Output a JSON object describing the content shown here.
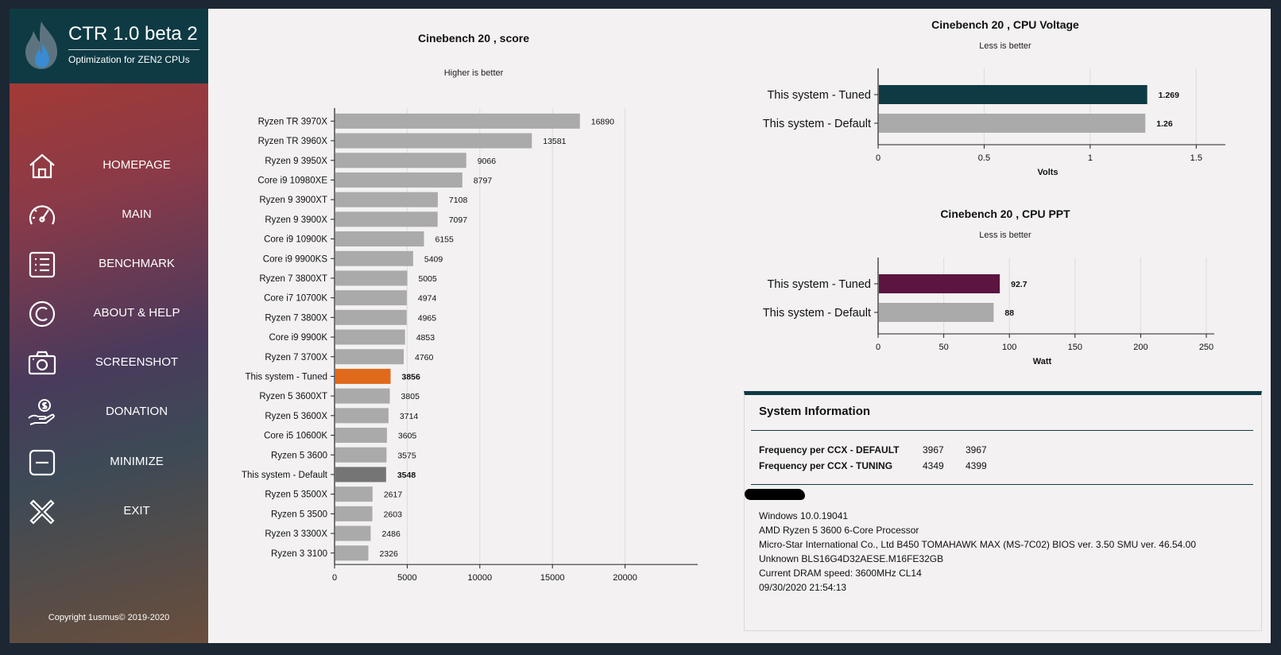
{
  "app": {
    "title": "CTR 1.0 beta 2",
    "subtitle": "Optimization for ZEN2 CPUs",
    "copyright": "Copyright 1usmus© 2019-2020",
    "brand_color": "#0e3a44"
  },
  "sidebar": {
    "items": [
      {
        "label": "HOMEPAGE",
        "icon": "home-icon"
      },
      {
        "label": "MAIN",
        "icon": "speedometer-icon"
      },
      {
        "label": "BENCHMARK",
        "icon": "list-icon"
      },
      {
        "label": "ABOUT & HELP",
        "icon": "copyright-icon"
      },
      {
        "label": "SCREENSHOT",
        "icon": "camera-icon"
      },
      {
        "label": "DONATION",
        "icon": "donation-icon"
      },
      {
        "label": "MINIMIZE",
        "icon": "minimize-icon"
      },
      {
        "label": "EXIT",
        "icon": "close-icon"
      }
    ]
  },
  "score_chart": {
    "title": "Cinebench 20 , score",
    "subtitle": "Higher is better"
  },
  "voltage_chart": {
    "title": "Cinebench 20 , CPU Voltage",
    "subtitle": "Less is better"
  },
  "ppt_chart": {
    "title": "Cinebench 20 , CPU PPT",
    "subtitle": "Less is better"
  },
  "chart_data": [
    {
      "type": "bar",
      "orientation": "horizontal",
      "title": "Cinebench 20 , score",
      "subtitle": "Higher is better",
      "xlabel": "",
      "ylabel": "",
      "xlim": [
        0,
        25000
      ],
      "xticks": [
        0,
        5000,
        10000,
        15000,
        20000
      ],
      "grid": true,
      "categories": [
        "Ryzen TR 3970X",
        "Ryzen TR 3960X",
        "Ryzen 9 3950X",
        "Core i9 10980XE",
        "Ryzen 9 3900XT",
        "Ryzen 9 3900X",
        "Core i9 10900K",
        "Core i9 9900KS",
        "Ryzen 7 3800XT",
        "Core i7 10700K",
        "Ryzen 7 3800X",
        "Core i9 9900K",
        "Ryzen 7 3700X",
        "This system - Tuned",
        "Ryzen 5 3600XT",
        "Ryzen 5 3600X",
        "Core i5 10600K",
        "Ryzen 5 3600",
        "This system - Default",
        "Ryzen 5 3500X",
        "Ryzen 5 3500",
        "Ryzen 3 3300X",
        "Ryzen 3 3100"
      ],
      "values": [
        16890,
        13581,
        9066,
        8797,
        7108,
        7097,
        6155,
        5409,
        5005,
        4974,
        4965,
        4853,
        4760,
        3856,
        3805,
        3714,
        3605,
        3575,
        3548,
        2617,
        2603,
        2486,
        2326
      ],
      "value_labels": [
        "16890",
        "13581",
        "9066",
        "8797",
        "7108",
        "7097",
        "6155",
        "5409",
        "5005",
        "4974",
        "4965",
        "4853",
        "4760",
        "3856",
        "3805",
        "3714",
        "3605",
        "3575",
        "3548",
        "2617",
        "2603",
        "2486",
        "2326"
      ],
      "bold_labels": [
        "This system - Tuned",
        "This system - Default"
      ],
      "colors": {
        "default": "#aaaaaa",
        "This system - Tuned": "#e06a1b",
        "This system - Default": "#757575"
      }
    },
    {
      "type": "bar",
      "orientation": "horizontal",
      "title": "Cinebench 20 , CPU Voltage",
      "subtitle": "Less is better",
      "xlabel": "Volts",
      "xlim": [
        0,
        1.6
      ],
      "xticks": [
        0,
        0.5,
        1,
        1.5
      ],
      "grid": true,
      "categories": [
        "This system - Tuned",
        "This system - Default"
      ],
      "values": [
        1.269,
        1.26
      ],
      "value_labels": [
        "1.269",
        "1.26"
      ],
      "colors": [
        "#0e3a44",
        "#aaaaaa"
      ]
    },
    {
      "type": "bar",
      "orientation": "horizontal",
      "title": "Cinebench 20 , CPU PPT",
      "subtitle": "Less is better",
      "xlabel": "Watt",
      "xlim": [
        0,
        250
      ],
      "xticks": [
        0,
        50,
        100,
        150,
        200,
        250
      ],
      "grid": true,
      "categories": [
        "This system - Tuned",
        "This system - Default"
      ],
      "values": [
        92.7,
        88
      ],
      "value_labels": [
        "92.7",
        "88"
      ],
      "colors": [
        "#5c1440",
        "#aaaaaa"
      ]
    }
  ],
  "sysinfo": {
    "title": "System Information",
    "freq_default_label": "Frequency per CCX - DEFAULT",
    "freq_default_values": [
      "3967",
      "3967"
    ],
    "freq_tuning_label": "Frequency per CCX - TUNING",
    "freq_tuning_values": [
      "4349",
      "4399"
    ],
    "lines": [
      "Windows 10.0.19041",
      "AMD Ryzen 5 3600 6-Core Processor",
      "Micro-Star International Co., Ltd B450 TOMAHAWK MAX (MS-7C02) BIOS ver. 3.50 SMU ver. 46.54.00",
      "Unknown BLS16G4D32AESE.M16FE32GB",
      "Current DRAM speed: 3600MHz CL14",
      "09/30/2020 21:54:13"
    ]
  }
}
